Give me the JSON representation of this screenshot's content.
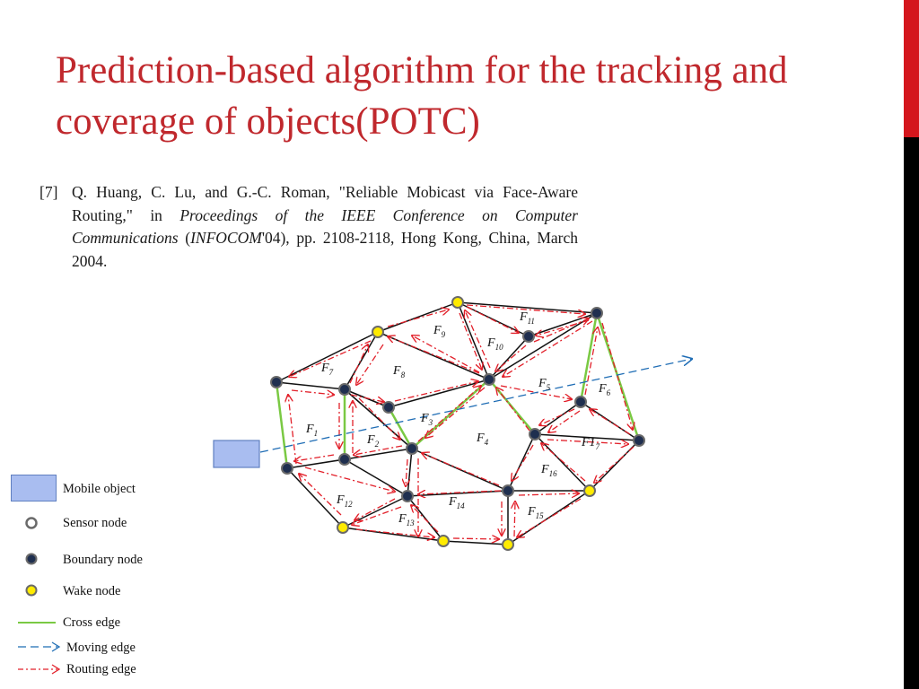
{
  "slide": {
    "title": "Prediction-based algorithm for the tracking and coverage of objects(POTC)"
  },
  "citation": {
    "number": "[7]",
    "authors": "Q. Huang, C. Lu, and G.-C. Roman, \"Reliable Mobicast via Face-Aware Routing,\" in ",
    "venue": "Proceedings of the IEEE Conference on Computer Communications",
    "venue_open": " (",
    "venue_short": "INFOCOM",
    "details": "'04), pp.  2108-2118, Hong Kong, China, March 2004."
  },
  "faces": [
    "F1",
    "F2",
    "F3",
    "F4",
    "F5",
    "F6",
    "F7",
    "F8",
    "F9",
    "F10",
    "F11",
    "F12",
    "F13",
    "F14",
    "F15",
    "F16",
    "F17"
  ],
  "legend": {
    "mobile_object": "Mobile object",
    "sensor_node": "Sensor node",
    "boundary_node": "Boundary node",
    "wake_node": "Wake node",
    "cross_edge": "Cross edge",
    "moving_edge": "Moving edge",
    "routing_edge": "Routing edge"
  },
  "colors": {
    "title": "#c0282d",
    "boundary_node": "#1f2f4f",
    "wake_node": "#ffeb00",
    "cross_edge": "#7ac943",
    "moving_edge": "#1f6db5",
    "routing_edge": "#e2202a",
    "mobile_object": "#a9bdf0"
  }
}
